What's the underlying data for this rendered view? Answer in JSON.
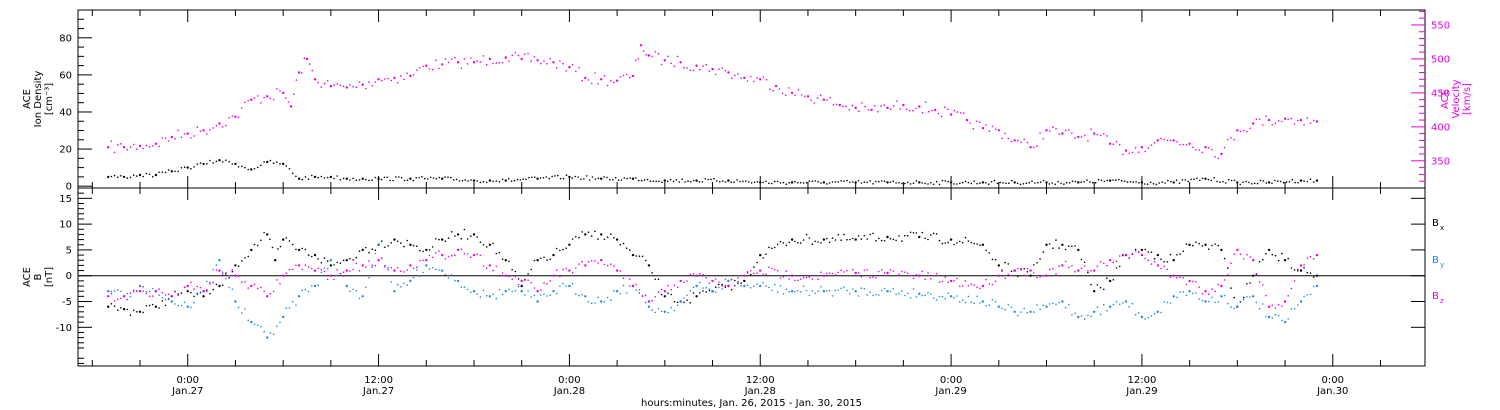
{
  "chart_data": [
    {
      "type": "scatter",
      "panel": "top",
      "left_axis_label": [
        "ACE",
        "Ion Density",
        "[cm⁻³]"
      ],
      "right_axis_label": [
        "ACE",
        "Velocity",
        "[km/s]"
      ],
      "left_yticks": [
        0,
        20,
        40,
        60,
        80
      ],
      "left_ylim": [
        -1,
        95
      ],
      "right_yticks": [
        350,
        400,
        450,
        500,
        550
      ],
      "right_ylim": [
        310,
        572
      ],
      "series": [
        {
          "color": "#000000",
          "axis": "left",
          "x": [
            -5,
            -4,
            -3,
            -2,
            -1,
            0,
            1,
            2,
            3,
            4,
            5,
            6,
            7,
            8,
            9,
            10,
            11,
            12,
            14,
            16,
            18,
            19,
            20,
            22,
            24,
            26,
            28,
            30,
            32,
            34,
            36,
            38,
            40,
            42,
            44,
            46,
            48,
            50,
            52,
            54,
            56,
            58,
            60,
            62,
            64,
            66,
            68,
            70,
            71
          ],
          "y": [
            5,
            5,
            6,
            6,
            8,
            10,
            12,
            14,
            12,
            9,
            13,
            12,
            4,
            5,
            5,
            4,
            4,
            4,
            4,
            4,
            3,
            3,
            3,
            4,
            5,
            4,
            4,
            3,
            3,
            3,
            2,
            2,
            2,
            2,
            2,
            2,
            2,
            2,
            2,
            2,
            2,
            3,
            2,
            2,
            4,
            2,
            2,
            3,
            3
          ]
        },
        {
          "color": "#e600e6",
          "axis": "right",
          "x": [
            -5,
            -4,
            -3,
            -2,
            -1,
            0,
            1,
            2,
            3,
            4,
            5,
            6,
            6.5,
            7,
            7.5,
            8,
            9,
            10,
            11,
            12,
            13,
            14,
            15,
            16,
            17,
            18,
            19,
            20,
            21,
            22,
            23,
            24,
            25,
            26,
            27,
            28,
            28.5,
            29,
            30,
            31,
            32,
            33,
            34,
            35,
            36,
            37,
            38,
            39,
            40,
            41,
            42,
            43,
            44,
            45,
            46,
            47,
            48,
            49,
            50,
            51,
            52,
            53,
            54,
            55,
            56,
            57,
            58,
            59,
            60,
            61,
            62,
            63,
            64,
            65,
            66,
            67,
            68,
            69,
            70,
            71
          ],
          "y": [
            370,
            370,
            372,
            375,
            385,
            390,
            395,
            405,
            415,
            440,
            445,
            450,
            430,
            480,
            500,
            470,
            460,
            458,
            462,
            470,
            472,
            475,
            490,
            492,
            495,
            495,
            500,
            502,
            500,
            498,
            495,
            488,
            472,
            470,
            468,
            475,
            520,
            505,
            498,
            495,
            490,
            485,
            480,
            472,
            470,
            460,
            450,
            445,
            440,
            432,
            428,
            425,
            428,
            432,
            430,
            425,
            418,
            410,
            398,
            395,
            380,
            370,
            395,
            390,
            385,
            390,
            375,
            365,
            370,
            380,
            380,
            375,
            370,
            360,
            395,
            405,
            410,
            412,
            410,
            408
          ]
        }
      ]
    },
    {
      "type": "scatter",
      "panel": "bottom",
      "left_axis_label": [
        "ACE",
        "B",
        "[nT]"
      ],
      "yticks": [
        -10,
        -5,
        0,
        5,
        10,
        15
      ],
      "ylim": [
        -17.5,
        17
      ],
      "zero_line": true,
      "legend": [
        "B",
        "B",
        "B"
      ],
      "legend_subscripts": [
        "x",
        "y",
        "z"
      ],
      "legend_placement": "right",
      "series": [
        {
          "name": "Bx",
          "color": "#000000",
          "x": [
            -5,
            -4,
            -3,
            -2,
            -1,
            0,
            1,
            2,
            3,
            4,
            5,
            5.5,
            6,
            7,
            8,
            9,
            10,
            11,
            12,
            13,
            14,
            15,
            16,
            17,
            18,
            19,
            20,
            21,
            22,
            23,
            24,
            25,
            26,
            27,
            28,
            29,
            30,
            31,
            32,
            33,
            34,
            35,
            36,
            38,
            40,
            42,
            44,
            46,
            48,
            50,
            51,
            52,
            53,
            54,
            55,
            56,
            57,
            58,
            59,
            60,
            61,
            62,
            63,
            64,
            65,
            66,
            67,
            68,
            69,
            70,
            71
          ],
          "y": [
            -6,
            -6.5,
            -7,
            -6,
            -4,
            -3,
            -4,
            -2,
            2,
            5,
            8,
            3,
            7,
            5,
            4,
            2,
            3,
            5,
            6,
            7,
            6,
            5,
            7,
            8,
            8,
            6,
            3,
            -2,
            3,
            4,
            6,
            8,
            8,
            7,
            4,
            2,
            -4,
            -5,
            -4,
            -3,
            -2,
            -1,
            4,
            7,
            7,
            7,
            7.5,
            7.5,
            7,
            6,
            2,
            1,
            0,
            6,
            6,
            5,
            -3,
            -1,
            4,
            5,
            4,
            3,
            6,
            6,
            5,
            -6,
            0,
            5,
            3,
            1,
            0
          ]
        },
        {
          "name": "By",
          "color": "#1e88e5",
          "x": [
            -5,
            -4,
            -3,
            -2,
            -1,
            0,
            1,
            2,
            3,
            4,
            5,
            6,
            7,
            8,
            9,
            10,
            11,
            12,
            13,
            14,
            15,
            16,
            17,
            18,
            19,
            20,
            21,
            22,
            23,
            24,
            25,
            26,
            27,
            28,
            29,
            30,
            31,
            32,
            33,
            34,
            35,
            36,
            38,
            40,
            42,
            44,
            46,
            48,
            50,
            51,
            52,
            53,
            54,
            55,
            56,
            57,
            58,
            59,
            60,
            61,
            62,
            63,
            64,
            65,
            66,
            67,
            68,
            69,
            70,
            71
          ],
          "y": [
            -3,
            -4,
            -2,
            -3,
            -5,
            -6,
            -3,
            3,
            -5,
            -9,
            -12,
            -8,
            -4,
            -2,
            3,
            -2,
            -4,
            6,
            -3,
            -1,
            2,
            1,
            -1,
            -3,
            -4,
            -3,
            -3,
            -5,
            -3,
            -2,
            -4,
            -5,
            -3,
            -2,
            -6,
            -7,
            -5,
            -2,
            -3,
            -1,
            -2,
            -2,
            -3,
            -3,
            -3,
            -3,
            -3.5,
            -4,
            -5,
            -6,
            -7,
            -7,
            -6,
            -5,
            -8,
            -7,
            -6,
            -5,
            -8,
            -7,
            -4,
            -3,
            -5,
            -4,
            -6,
            -4,
            -8,
            -9,
            -5,
            -2
          ]
        },
        {
          "name": "Bz",
          "color": "#e600e6",
          "x": [
            -5,
            -4,
            -3,
            -2,
            -1,
            0,
            1,
            2,
            3,
            4,
            5,
            6,
            7,
            8,
            9,
            10,
            11,
            12,
            13,
            14,
            15,
            16,
            17,
            18,
            19,
            20,
            21,
            22,
            23,
            24,
            25,
            26,
            27,
            28,
            29,
            30,
            31,
            32,
            33,
            34,
            35,
            36,
            38,
            40,
            42,
            44,
            46,
            48,
            50,
            51,
            52,
            53,
            54,
            55,
            56,
            57,
            58,
            59,
            60,
            61,
            62,
            63,
            64,
            65,
            66,
            67,
            68,
            69,
            70,
            71
          ],
          "y": [
            -4,
            -4,
            -3,
            -3,
            -4,
            -2,
            -3,
            1,
            0,
            -2,
            -4,
            0,
            2,
            1,
            0,
            1,
            2,
            3,
            1,
            2,
            3,
            4,
            5,
            4,
            2,
            0,
            -1,
            -3,
            0,
            1,
            2,
            3,
            1,
            -2,
            -5,
            -3,
            -1,
            0,
            -1,
            -2,
            0,
            1,
            0,
            0,
            0.5,
            0.5,
            0,
            -1,
            -2,
            0,
            1,
            1,
            0,
            2,
            1,
            1,
            3,
            4,
            4,
            2,
            0,
            -1,
            -3,
            -2,
            5,
            3,
            -6,
            -5,
            2,
            4
          ]
        }
      ]
    }
  ],
  "x_axis": {
    "range": [
      -6.9,
      77.8
    ],
    "tick_positions": [
      0,
      12,
      24,
      36,
      48,
      60,
      72
    ],
    "tick_times": [
      "0:00",
      "12:00",
      "0:00",
      "12:00",
      "0:00",
      "12:00",
      "0:00"
    ],
    "tick_dates": [
      "Jan.27",
      "Jan.27",
      "Jan.28",
      "Jan.28",
      "Jan.29",
      "Jan.29",
      "Jan.30"
    ],
    "label": "hours:minutes, Jan. 26, 2015 - Jan. 30, 2015"
  }
}
